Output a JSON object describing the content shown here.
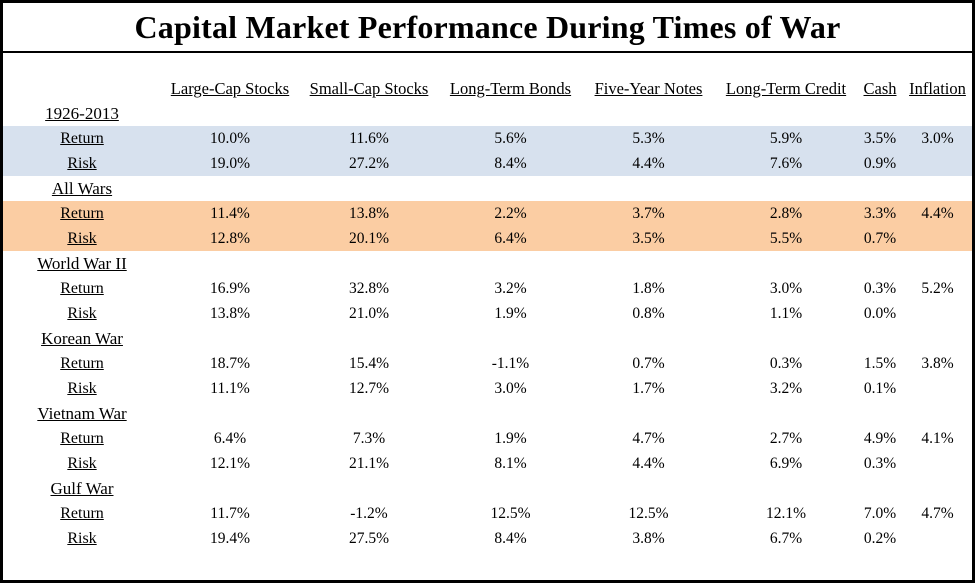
{
  "title": "Capital Market Performance During Times of War",
  "row_labels": {
    "return": "Return",
    "risk": "Risk"
  },
  "columns": [
    "Large-Cap Stocks",
    "Small-Cap Stocks",
    "Long-Term Bonds",
    "Five-Year Notes",
    "Long-Term Credit",
    "Cash",
    "Inflation"
  ],
  "groups": [
    {
      "label": "1926-2013",
      "highlight": "blue",
      "return": [
        "10.0%",
        "11.6%",
        "5.6%",
        "5.3%",
        "5.9%",
        "3.5%",
        "3.0%"
      ],
      "risk": [
        "19.0%",
        "27.2%",
        "8.4%",
        "4.4%",
        "7.6%",
        "0.9%",
        ""
      ]
    },
    {
      "label": "All Wars",
      "highlight": "orange",
      "return": [
        "11.4%",
        "13.8%",
        "2.2%",
        "3.7%",
        "2.8%",
        "3.3%",
        "4.4%"
      ],
      "risk": [
        "12.8%",
        "20.1%",
        "6.4%",
        "3.5%",
        "5.5%",
        "0.7%",
        ""
      ]
    },
    {
      "label": "World War II",
      "highlight": "none",
      "return": [
        "16.9%",
        "32.8%",
        "3.2%",
        "1.8%",
        "3.0%",
        "0.3%",
        "5.2%"
      ],
      "risk": [
        "13.8%",
        "21.0%",
        "1.9%",
        "0.8%",
        "1.1%",
        "0.0%",
        ""
      ]
    },
    {
      "label": "Korean War",
      "highlight": "none",
      "return": [
        "18.7%",
        "15.4%",
        "-1.1%",
        "0.7%",
        "0.3%",
        "1.5%",
        "3.8%"
      ],
      "risk": [
        "11.1%",
        "12.7%",
        "3.0%",
        "1.7%",
        "3.2%",
        "0.1%",
        ""
      ]
    },
    {
      "label": "Vietnam War",
      "highlight": "none",
      "return": [
        "6.4%",
        "7.3%",
        "1.9%",
        "4.7%",
        "2.7%",
        "4.9%",
        "4.1%"
      ],
      "risk": [
        "12.1%",
        "21.1%",
        "8.1%",
        "4.4%",
        "6.9%",
        "0.3%",
        ""
      ]
    },
    {
      "label": "Gulf War",
      "highlight": "none",
      "return": [
        "11.7%",
        "-1.2%",
        "12.5%",
        "12.5%",
        "12.1%",
        "7.0%",
        "4.7%"
      ],
      "risk": [
        "19.4%",
        "27.5%",
        "8.4%",
        "3.8%",
        "6.7%",
        "0.2%",
        ""
      ]
    }
  ],
  "colors": {
    "highlight_blue": "#d7e1ee",
    "highlight_orange": "#fbcda3",
    "border": "#000000"
  },
  "chart_data": {
    "type": "table",
    "title": "Capital Market Performance During Times of War",
    "columns": [
      "Large-Cap Stocks",
      "Small-Cap Stocks",
      "Long-Term Bonds",
      "Five-Year Notes",
      "Long-Term Credit",
      "Cash",
      "Inflation"
    ],
    "unit": "percent",
    "rows": [
      {
        "period": "1926-2013",
        "metric": "Return",
        "values": [
          10.0,
          11.6,
          5.6,
          5.3,
          5.9,
          3.5,
          3.0
        ]
      },
      {
        "period": "1926-2013",
        "metric": "Risk",
        "values": [
          19.0,
          27.2,
          8.4,
          4.4,
          7.6,
          0.9,
          null
        ]
      },
      {
        "period": "All Wars",
        "metric": "Return",
        "values": [
          11.4,
          13.8,
          2.2,
          3.7,
          2.8,
          3.3,
          4.4
        ]
      },
      {
        "period": "All Wars",
        "metric": "Risk",
        "values": [
          12.8,
          20.1,
          6.4,
          3.5,
          5.5,
          0.7,
          null
        ]
      },
      {
        "period": "World War II",
        "metric": "Return",
        "values": [
          16.9,
          32.8,
          3.2,
          1.8,
          3.0,
          0.3,
          5.2
        ]
      },
      {
        "period": "World War II",
        "metric": "Risk",
        "values": [
          13.8,
          21.0,
          1.9,
          0.8,
          1.1,
          0.0,
          null
        ]
      },
      {
        "period": "Korean War",
        "metric": "Return",
        "values": [
          18.7,
          15.4,
          -1.1,
          0.7,
          0.3,
          1.5,
          3.8
        ]
      },
      {
        "period": "Korean War",
        "metric": "Risk",
        "values": [
          11.1,
          12.7,
          3.0,
          1.7,
          3.2,
          0.1,
          null
        ]
      },
      {
        "period": "Vietnam War",
        "metric": "Return",
        "values": [
          6.4,
          7.3,
          1.9,
          4.7,
          2.7,
          4.9,
          4.1
        ]
      },
      {
        "period": "Vietnam War",
        "metric": "Risk",
        "values": [
          12.1,
          21.1,
          8.1,
          4.4,
          6.9,
          0.3,
          null
        ]
      },
      {
        "period": "Gulf War",
        "metric": "Return",
        "values": [
          11.7,
          -1.2,
          12.5,
          12.5,
          12.1,
          7.0,
          4.7
        ]
      },
      {
        "period": "Gulf War",
        "metric": "Risk",
        "values": [
          19.4,
          27.5,
          8.4,
          3.8,
          6.7,
          0.2,
          null
        ]
      }
    ],
    "highlighted_rows": {
      "1926-2013": "light-blue",
      "All Wars": "light-orange"
    }
  }
}
